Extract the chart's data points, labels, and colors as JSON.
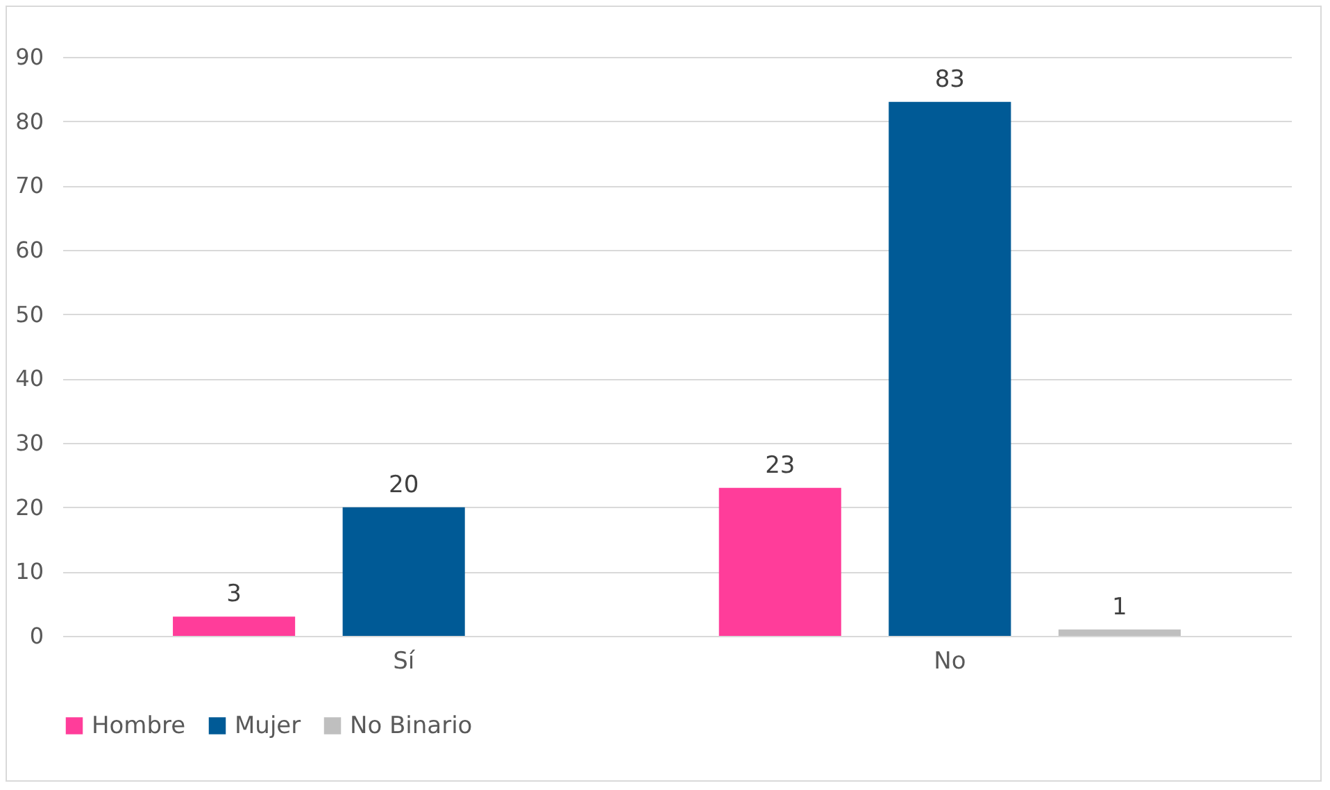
{
  "chart_data": {
    "type": "bar",
    "categories": [
      "Sí",
      "No"
    ],
    "series": [
      {
        "name": "Hombre",
        "color": "#ff3d9a",
        "values": [
          3,
          23
        ]
      },
      {
        "name": "Mujer",
        "color": "#005a96",
        "values": [
          20,
          83
        ]
      },
      {
        "name": "No Binario",
        "color": "#bfbfbf",
        "values": [
          null,
          1
        ]
      }
    ],
    "ylim": [
      0,
      90
    ],
    "yticks": [
      0,
      10,
      20,
      30,
      40,
      50,
      60,
      70,
      80,
      90
    ],
    "grid": "y",
    "legend": "bottom",
    "data_labels": true
  }
}
